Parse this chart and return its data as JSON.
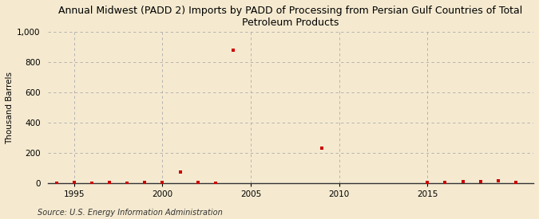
{
  "title": "Annual Midwest (PADD 2) Imports by PADD of Processing from Persian Gulf Countries of Total\nPetroleum Products",
  "ylabel": "Thousand Barrels",
  "source": "Source: U.S. Energy Information Administration",
  "background_color": "#f5ead0",
  "marker_color": "#cc0000",
  "xlim": [
    1993.5,
    2021
  ],
  "ylim": [
    0,
    1000
  ],
  "yticks": [
    0,
    200,
    400,
    600,
    800,
    1000
  ],
  "ytick_labels": [
    "0",
    "200",
    "400",
    "600",
    "800",
    "1,000"
  ],
  "xticks": [
    1995,
    2000,
    2005,
    2010,
    2015
  ],
  "data_x": [
    1994,
    1995,
    1996,
    1997,
    1998,
    1999,
    2000,
    2001,
    2002,
    2003,
    2004,
    2009,
    2015,
    2016,
    2017,
    2018,
    2019,
    2020
  ],
  "data_y": [
    0,
    2,
    0,
    2,
    0,
    2,
    2,
    75,
    2,
    0,
    880,
    232,
    5,
    2,
    10,
    8,
    15,
    2
  ]
}
